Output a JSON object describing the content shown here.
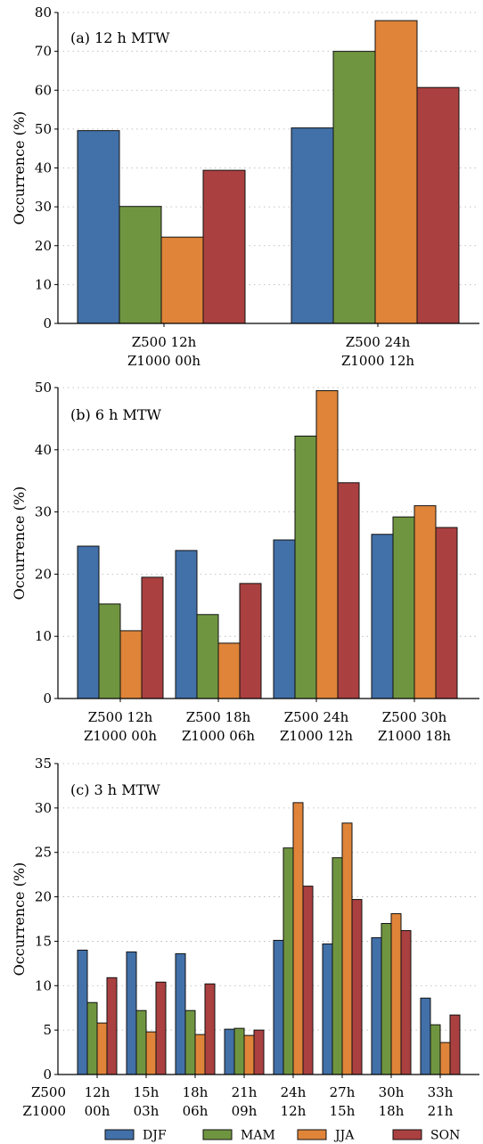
{
  "colors": {
    "DJF": "#4270a8",
    "MAM": "#709540",
    "JJA": "#df8439",
    "SON": "#aa4040"
  },
  "legend": [
    "DJF",
    "MAM",
    "JJA",
    "SON"
  ],
  "chart_data": [
    {
      "type": "bar",
      "title": "(a) 12 h MTW",
      "ylabel": "Occurrence (%)",
      "ylim": [
        0,
        80
      ],
      "yticks": [
        0,
        10,
        20,
        30,
        40,
        50,
        60,
        70,
        80
      ],
      "categories": [
        [
          "Z500 12h",
          "Z1000 00h"
        ],
        [
          "Z500 24h",
          "Z1000 12h"
        ]
      ],
      "series": [
        {
          "name": "DJF",
          "values": [
            49.6,
            50.3
          ]
        },
        {
          "name": "MAM",
          "values": [
            30.1,
            70.0
          ]
        },
        {
          "name": "JJA",
          "values": [
            22.2,
            77.9
          ]
        },
        {
          "name": "SON",
          "values": [
            39.4,
            60.7
          ]
        }
      ],
      "grid": "horizontal dotted"
    },
    {
      "type": "bar",
      "title": "(b) 6 h MTW",
      "ylabel": "Occurrence (%)",
      "ylim": [
        0,
        50
      ],
      "yticks": [
        0,
        10,
        20,
        30,
        40,
        50
      ],
      "categories": [
        [
          "Z500 12h",
          "Z1000 00h"
        ],
        [
          "Z500 18h",
          "Z1000 06h"
        ],
        [
          "Z500 24h",
          "Z1000 12h"
        ],
        [
          "Z500 30h",
          "Z1000 18h"
        ]
      ],
      "series": [
        {
          "name": "DJF",
          "values": [
            24.5,
            23.8,
            25.5,
            26.4
          ]
        },
        {
          "name": "MAM",
          "values": [
            15.2,
            13.5,
            42.2,
            29.2
          ]
        },
        {
          "name": "JJA",
          "values": [
            10.9,
            8.9,
            49.5,
            31.0
          ]
        },
        {
          "name": "SON",
          "values": [
            19.5,
            18.5,
            34.7,
            27.5
          ]
        }
      ],
      "grid": "horizontal dotted"
    },
    {
      "type": "bar",
      "title": "(c) 3 h MTW",
      "ylabel": "Occurrence (%)",
      "ylim": [
        0,
        35
      ],
      "yticks": [
        0,
        5,
        10,
        15,
        20,
        25,
        30,
        35
      ],
      "row_labels": [
        "Z500",
        "Z1000"
      ],
      "categories": [
        [
          "12h",
          "00h"
        ],
        [
          "15h",
          "03h"
        ],
        [
          "18h",
          "06h"
        ],
        [
          "21h",
          "09h"
        ],
        [
          "24h",
          "12h"
        ],
        [
          "27h",
          "15h"
        ],
        [
          "30h",
          "18h"
        ],
        [
          "33h",
          "21h"
        ]
      ],
      "series": [
        {
          "name": "DJF",
          "values": [
            14.0,
            13.8,
            13.6,
            5.1,
            15.1,
            14.7,
            15.4,
            8.6
          ]
        },
        {
          "name": "MAM",
          "values": [
            8.1,
            7.2,
            7.2,
            5.2,
            25.5,
            24.4,
            17.0,
            5.6
          ]
        },
        {
          "name": "JJA",
          "values": [
            5.8,
            4.8,
            4.5,
            4.4,
            30.6,
            28.3,
            18.1,
            3.6
          ]
        },
        {
          "name": "SON",
          "values": [
            10.9,
            10.4,
            10.2,
            5.0,
            21.2,
            19.7,
            16.2,
            6.7
          ]
        }
      ],
      "grid": "horizontal dotted"
    }
  ]
}
